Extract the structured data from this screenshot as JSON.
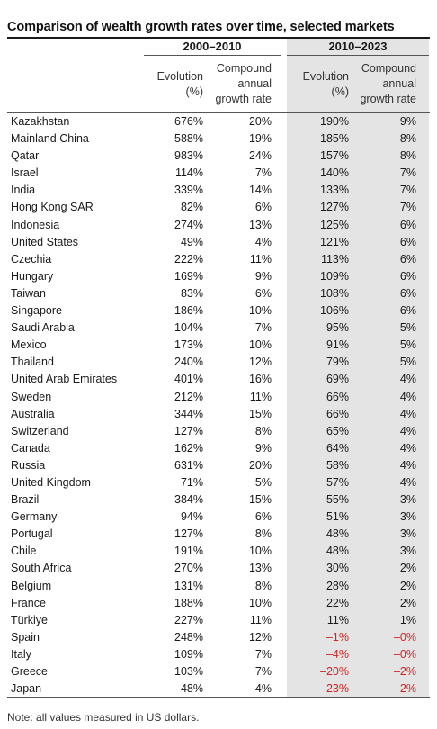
{
  "title": "Comparison of wealth growth rates over time, selected markets",
  "periods": [
    "2000–2010",
    "2010–2023"
  ],
  "columns": {
    "evolution": [
      "Evolution",
      "(%)"
    ],
    "cagr": [
      "Compound",
      "annual",
      "growth rate"
    ]
  },
  "rows": [
    [
      "Kazakhstan",
      "676%",
      "20%",
      "190%",
      "9%"
    ],
    [
      "Mainland China",
      "588%",
      "19%",
      "185%",
      "8%"
    ],
    [
      "Qatar",
      "983%",
      "24%",
      "157%",
      "8%"
    ],
    [
      "Israel",
      "114%",
      "7%",
      "140%",
      "7%"
    ],
    [
      "India",
      "339%",
      "14%",
      "133%",
      "7%"
    ],
    [
      "Hong Kong SAR",
      "82%",
      "6%",
      "127%",
      "7%"
    ],
    [
      "Indonesia",
      "274%",
      "13%",
      "125%",
      "6%"
    ],
    [
      "United States",
      "49%",
      "4%",
      "121%",
      "6%"
    ],
    [
      "Czechia",
      "222%",
      "11%",
      "113%",
      "6%"
    ],
    [
      "Hungary",
      "169%",
      "9%",
      "109%",
      "6%"
    ],
    [
      "Taiwan",
      "83%",
      "6%",
      "108%",
      "6%"
    ],
    [
      "Singapore",
      "186%",
      "10%",
      "106%",
      "6%"
    ],
    [
      "Saudi Arabia",
      "104%",
      "7%",
      "95%",
      "5%"
    ],
    [
      "Mexico",
      "173%",
      "10%",
      "91%",
      "5%"
    ],
    [
      "Thailand",
      "240%",
      "12%",
      "79%",
      "5%"
    ],
    [
      "United Arab Emirates",
      "401%",
      "16%",
      "69%",
      "4%"
    ],
    [
      "Sweden",
      "212%",
      "11%",
      "66%",
      "4%"
    ],
    [
      "Australia",
      "344%",
      "15%",
      "66%",
      "4%"
    ],
    [
      "Switzerland",
      "127%",
      "8%",
      "65%",
      "4%"
    ],
    [
      "Canada",
      "162%",
      "9%",
      "64%",
      "4%"
    ],
    [
      "Russia",
      "631%",
      "20%",
      "58%",
      "4%"
    ],
    [
      "United Kingdom",
      "71%",
      "5%",
      "57%",
      "4%"
    ],
    [
      "Brazil",
      "384%",
      "15%",
      "55%",
      "3%"
    ],
    [
      "Germany",
      "94%",
      "6%",
      "51%",
      "3%"
    ],
    [
      "Portugal",
      "127%",
      "8%",
      "48%",
      "3%"
    ],
    [
      "Chile",
      "191%",
      "10%",
      "48%",
      "3%"
    ],
    [
      "South Africa",
      "270%",
      "13%",
      "30%",
      "2%"
    ],
    [
      "Belgium",
      "131%",
      "8%",
      "28%",
      "2%"
    ],
    [
      "France",
      "188%",
      "10%",
      "22%",
      "2%"
    ],
    [
      "Türkiye",
      "227%",
      "11%",
      "11%",
      "1%"
    ],
    [
      "Spain",
      "248%",
      "12%",
      "–1%",
      "–0%"
    ],
    [
      "Italy",
      "109%",
      "7%",
      "–4%",
      "–0%"
    ],
    [
      "Greece",
      "103%",
      "7%",
      "–20%",
      "–2%"
    ],
    [
      "Japan",
      "48%",
      "4%",
      "–23%",
      "–2%"
    ]
  ],
  "negative_color": "#d42020",
  "note": "Note: all values measured in US dollars."
}
